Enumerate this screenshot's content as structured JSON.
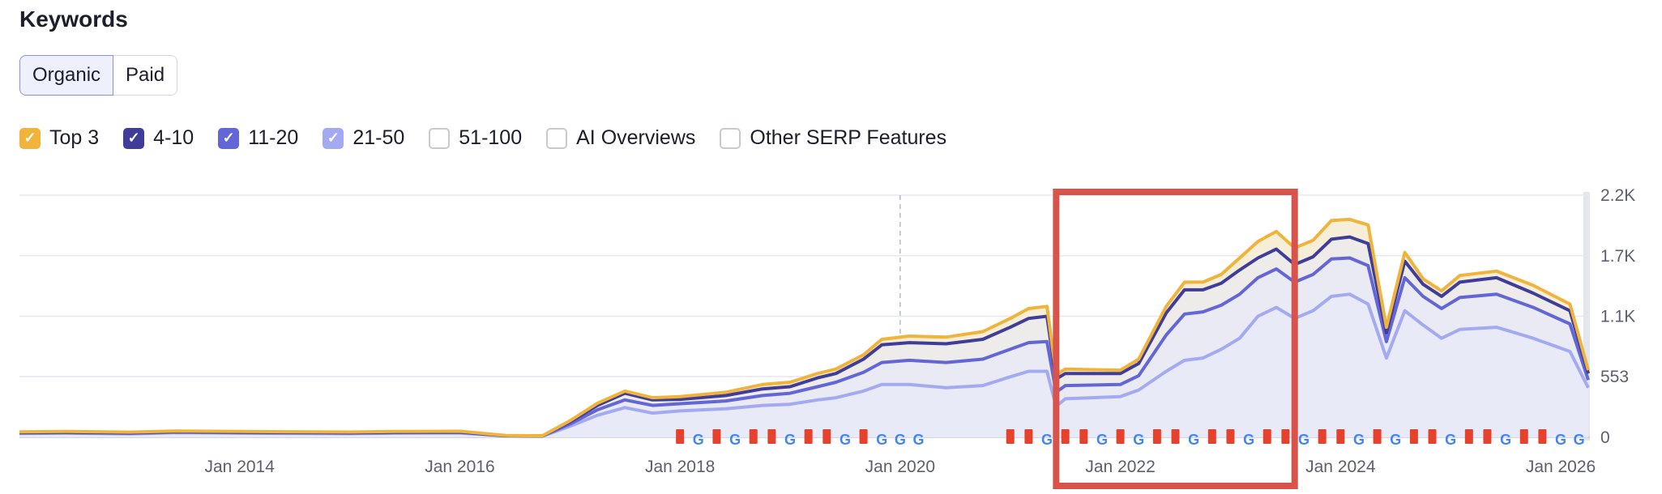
{
  "header": {
    "title": "Keywords"
  },
  "tabs": [
    {
      "label": "Organic",
      "active": true
    },
    {
      "label": "Paid",
      "active": false
    }
  ],
  "legend": [
    {
      "label": "Top 3",
      "checked": true,
      "color": "#f0b43c"
    },
    {
      "label": "4-10",
      "checked": true,
      "color": "#3f3d99"
    },
    {
      "label": "11-20",
      "checked": true,
      "color": "#6366d6"
    },
    {
      "label": "21-50",
      "checked": true,
      "color": "#a3aaf2"
    },
    {
      "label": "51-100",
      "checked": false,
      "color": ""
    },
    {
      "label": "AI Overviews",
      "checked": false,
      "color": ""
    },
    {
      "label": "Other SERP Features",
      "checked": false,
      "color": ""
    }
  ],
  "highlight": {
    "color": "#d9534a",
    "x_range": [
      "2021-06",
      "2023-08"
    ]
  },
  "chart_data": {
    "type": "area",
    "stacked": true,
    "x": [
      "2012-01",
      "2012-06",
      "2013-01",
      "2013-06",
      "2014-01",
      "2014-06",
      "2015-01",
      "2015-06",
      "2016-01",
      "2016-06",
      "2016-10",
      "2017-01",
      "2017-04",
      "2017-07",
      "2017-10",
      "2018-01",
      "2018-06",
      "2018-10",
      "2019-01",
      "2019-04",
      "2019-06",
      "2019-09",
      "2019-11",
      "2020-02",
      "2020-06",
      "2020-10",
      "2021-01",
      "2021-03",
      "2021-05",
      "2021-06",
      "2021-07",
      "2022-01",
      "2022-03",
      "2022-06",
      "2022-08",
      "2022-10",
      "2022-12",
      "2023-02",
      "2023-04",
      "2023-06",
      "2023-08",
      "2023-10",
      "2023-12",
      "2024-02",
      "2024-04",
      "2024-06",
      "2024-08",
      "2024-10",
      "2024-12",
      "2025-02",
      "2025-06",
      "2025-10",
      "2026-02",
      "2026-04"
    ],
    "series": [
      {
        "name": "21-50",
        "color": "#a3aaf2",
        "values": [
          35,
          38,
          32,
          42,
          38,
          36,
          33,
          38,
          40,
          12,
          10,
          100,
          200,
          270,
          220,
          240,
          260,
          290,
          300,
          340,
          360,
          420,
          480,
          480,
          450,
          470,
          550,
          600,
          600,
          280,
          350,
          370,
          430,
          600,
          700,
          720,
          800,
          900,
          1100,
          1180,
          1080,
          1150,
          1280,
          1300,
          1210,
          720,
          1150,
          1020,
          900,
          980,
          1000,
          900,
          780,
          450
        ]
      },
      {
        "name": "11-20",
        "color": "#6366d6",
        "values": [
          5,
          5,
          5,
          5,
          5,
          5,
          5,
          5,
          5,
          2,
          2,
          20,
          50,
          70,
          70,
          65,
          70,
          90,
          100,
          120,
          140,
          170,
          200,
          220,
          230,
          240,
          250,
          260,
          270,
          130,
          120,
          110,
          130,
          330,
          420,
          420,
          400,
          400,
          350,
          350,
          330,
          330,
          340,
          330,
          350,
          150,
          300,
          260,
          270,
          290,
          300,
          280,
          250,
          70
        ]
      },
      {
        "name": "4-10",
        "color": "#3f3d99",
        "values": [
          5,
          5,
          5,
          5,
          5,
          5,
          5,
          5,
          5,
          1,
          1,
          20,
          40,
          60,
          50,
          40,
          50,
          60,
          60,
          80,
          80,
          120,
          160,
          160,
          170,
          180,
          200,
          220,
          230,
          120,
          110,
          100,
          110,
          200,
          220,
          200,
          200,
          220,
          180,
          180,
          160,
          160,
          180,
          190,
          200,
          80,
          150,
          110,
          110,
          140,
          150,
          130,
          120,
          60
        ]
      },
      {
        "name": "Top 3",
        "color": "#f0b43c",
        "values": [
          5,
          5,
          5,
          5,
          5,
          5,
          5,
          5,
          5,
          1,
          1,
          10,
          20,
          20,
          20,
          25,
          30,
          40,
          40,
          40,
          40,
          40,
          50,
          60,
          60,
          70,
          80,
          90,
          90,
          40,
          40,
          30,
          40,
          60,
          70,
          70,
          80,
          110,
          150,
          160,
          150,
          150,
          170,
          160,
          170,
          50,
          80,
          50,
          50,
          60,
          60,
          70,
          60,
          30
        ]
      }
    ],
    "events_x": [
      "2018-01",
      "2018-03",
      "2018-05",
      "2018-07",
      "2018-09",
      "2018-11",
      "2019-01",
      "2019-03",
      "2019-05",
      "2019-07",
      "2019-09",
      "2019-11",
      "2020-01",
      "2020-03",
      "2021-01",
      "2021-03",
      "2021-05",
      "2021-07",
      "2021-09",
      "2021-11",
      "2022-01",
      "2022-03",
      "2022-05",
      "2022-07",
      "2022-09",
      "2022-11",
      "2023-01",
      "2023-03",
      "2023-05",
      "2023-07",
      "2023-09",
      "2023-11",
      "2024-01",
      "2024-03",
      "2024-05",
      "2024-07",
      "2024-09",
      "2024-11",
      "2025-01",
      "2025-03",
      "2025-05",
      "2025-07",
      "2025-09",
      "2025-11",
      "2026-01",
      "2026-03"
    ],
    "events_labels": [
      "C",
      "G",
      "C",
      "G",
      "C",
      "C",
      "G",
      "C",
      "C",
      "G",
      "C",
      "G",
      "G",
      "G",
      "C",
      "C",
      "G",
      "C",
      "C",
      "G",
      "C",
      "G",
      "C",
      "C",
      "G",
      "C",
      "C",
      "G",
      "C",
      "C",
      "G",
      "C",
      "C",
      "G",
      "C",
      "G",
      "C",
      "C",
      "G",
      "C",
      "C",
      "G",
      "C",
      "C",
      "G",
      "G"
    ],
    "x_ticks": [
      {
        "value": "2014-01",
        "label": "Jan 2014"
      },
      {
        "value": "2016-01",
        "label": "Jan 2016"
      },
      {
        "value": "2018-01",
        "label": "Jan 2018"
      },
      {
        "value": "2020-01",
        "label": "Jan 2020"
      },
      {
        "value": "2022-01",
        "label": "Jan 2022"
      },
      {
        "value": "2024-01",
        "label": "Jan 2024"
      },
      {
        "value": "2026-01",
        "label": "Jan 2026"
      }
    ],
    "y_ticks": [
      {
        "value": 0,
        "label": "0"
      },
      {
        "value": 553,
        "label": "553"
      },
      {
        "value": 1100,
        "label": "1.1K"
      },
      {
        "value": 1650,
        "label": "1.7K"
      },
      {
        "value": 2200,
        "label": "2.2K"
      }
    ],
    "ylim": [
      0,
      2200
    ],
    "xlim": [
      "2012-01",
      "2026-04"
    ],
    "grid": true,
    "dashed_marker_x": "2020-01"
  }
}
